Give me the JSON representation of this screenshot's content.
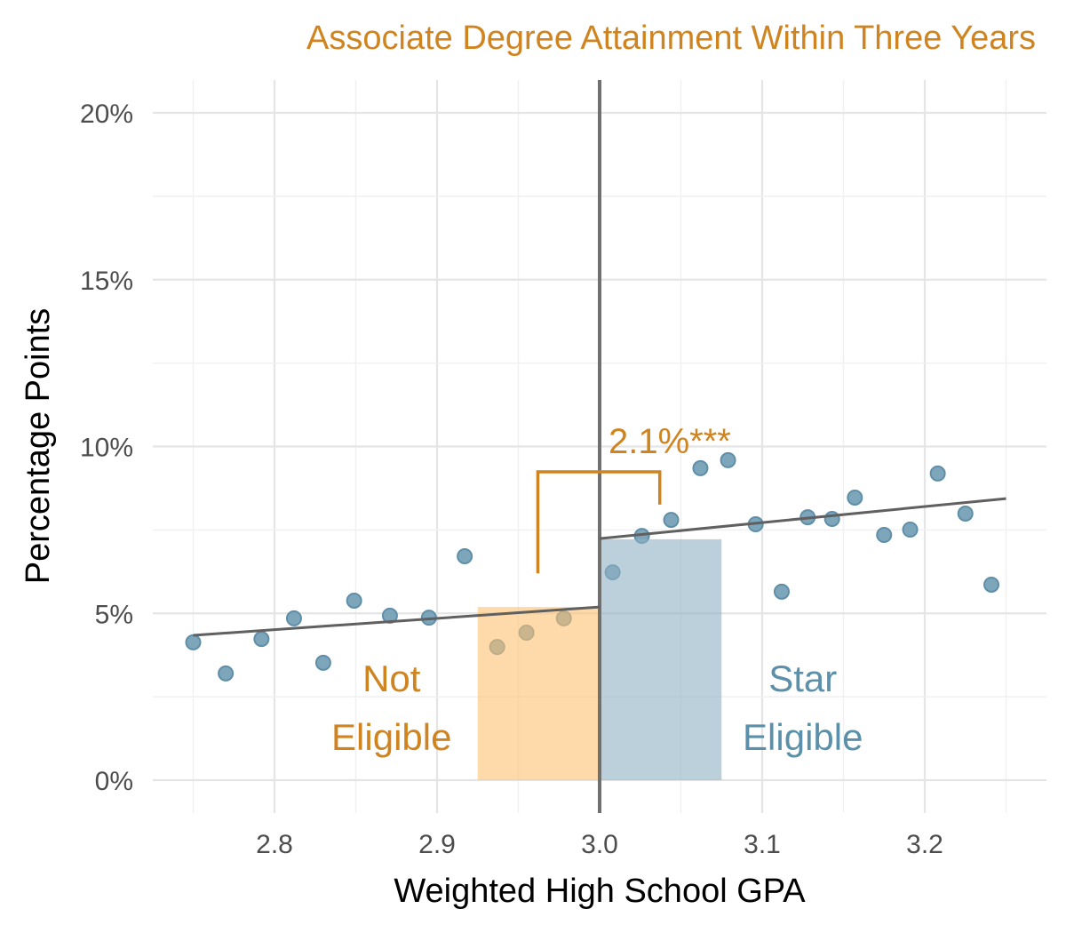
{
  "chart_data": {
    "type": "scatter",
    "title": "Associate Degree Attainment Within Three Years",
    "xlabel": "Weighted High School GPA",
    "ylabel": "Percentage Points",
    "xlim": [
      2.725,
      3.255
    ],
    "ylim": [
      -1,
      21
    ],
    "x_ticks": [
      2.8,
      2.9,
      3.0,
      3.1,
      3.2
    ],
    "x_tick_labels": [
      "2.8",
      "2.9",
      "3.0",
      "3.1",
      "3.2"
    ],
    "y_ticks": [
      0,
      5,
      10,
      15,
      20
    ],
    "y_tick_labels": [
      "0%",
      "5%",
      "10%",
      "15%",
      "20%"
    ],
    "grid": true,
    "cutoff": 3.0,
    "points": {
      "x": [
        2.75,
        2.77,
        2.792,
        2.812,
        2.83,
        2.849,
        2.871,
        2.895,
        2.917,
        2.937,
        2.955,
        2.978,
        3.008,
        3.026,
        3.044,
        3.062,
        3.079,
        3.096,
        3.112,
        3.128,
        3.143,
        3.157,
        3.175,
        3.191,
        3.208,
        3.225,
        3.241
      ],
      "y": [
        4.13,
        3.2,
        4.23,
        4.85,
        3.52,
        5.38,
        4.93,
        4.87,
        6.71,
        3.99,
        4.42,
        4.85,
        6.23,
        7.32,
        7.8,
        9.35,
        9.59,
        7.67,
        5.65,
        7.88,
        7.83,
        8.47,
        7.35,
        7.51,
        9.19,
        7.99,
        5.86
      ]
    },
    "fit_lines": [
      {
        "name": "left",
        "x": [
          2.75,
          3.0
        ],
        "y": [
          4.34,
          5.19
        ]
      },
      {
        "name": "right",
        "x": [
          3.0,
          3.25
        ],
        "y": [
          7.24,
          8.44
        ]
      }
    ],
    "bars": [
      {
        "name": "Not Eligible",
        "x": [
          2.925,
          3.0
        ],
        "value": 5.19,
        "color": "#fdbf6f"
      },
      {
        "name": "Star Eligible",
        "x": [
          3.0,
          3.075
        ],
        "value": 7.22,
        "color": "#8fb0c3"
      }
    ],
    "annotation": {
      "label": "2.1%***",
      "bracket_x": [
        2.962,
        3.037
      ],
      "bracket_top": 9.24,
      "left_bottom": 6.2,
      "right_bottom": 8.26
    },
    "region_labels": [
      {
        "lines": [
          "Not",
          "Eligible"
        ],
        "x": 2.872,
        "color": "#d08420"
      },
      {
        "lines": [
          "Star",
          "Eligible"
        ],
        "x": 3.125,
        "color": "#5b90aa"
      }
    ],
    "colors": {
      "point": "#6f9cb4",
      "fit": "#606060",
      "cutoff": "#707070",
      "accent": "#d08420"
    }
  }
}
